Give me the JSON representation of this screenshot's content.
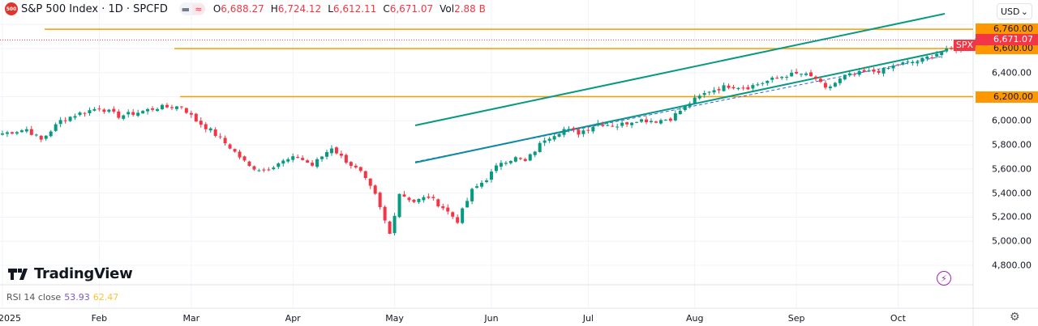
{
  "header": {
    "symbol_logo": "500",
    "title": "S&P 500 Index · 1D · SPCFD",
    "pill_left": "▬",
    "pill_right": "≈",
    "ohlc": {
      "o_label": "O",
      "o": "6,688.27",
      "h_label": "H",
      "h": "6,724.12",
      "l_label": "L",
      "l": "6,612.11",
      "c_label": "C",
      "c": "6,671.07",
      "vol_label": "Vol",
      "vol": "2.88 B"
    }
  },
  "currency": {
    "label": "USD",
    "chevron": "⌄"
  },
  "price_axis": {
    "labels": [
      {
        "p": 6400,
        "t": "6,400.00"
      },
      {
        "p": 6000,
        "t": "6,000.00"
      },
      {
        "p": 5800,
        "t": "5,800.00"
      },
      {
        "p": 5600,
        "t": "5,600.00"
      },
      {
        "p": 5400,
        "t": "5,400.00"
      },
      {
        "p": 5200,
        "t": "5,200.00"
      },
      {
        "p": 5000,
        "t": "5,000.00"
      },
      {
        "p": 4800,
        "t": "4,800.00"
      }
    ],
    "tags": [
      {
        "p": 6760,
        "t": "6,760.00"
      },
      {
        "p": 6600,
        "t": "6,600.00"
      },
      {
        "p": 6200,
        "t": "6,200.00"
      }
    ],
    "last": {
      "p": 6671.07,
      "t": "6,671.07",
      "symbol": "SPX"
    }
  },
  "colors": {
    "up": "#089981",
    "down": "#f23645",
    "level": "#ff9800",
    "channel": "#089981",
    "regression": "#2962ff"
  },
  "levels": [
    6760,
    6600,
    6200
  ],
  "chart_data": {
    "type": "candlestick",
    "closes_keyframes": [
      [
        0,
        5895
      ],
      [
        5,
        5930
      ],
      [
        8,
        5840
      ],
      [
        12,
        6000
      ],
      [
        15,
        6050
      ],
      [
        20,
        6110
      ],
      [
        24,
        6040
      ],
      [
        28,
        6070
      ],
      [
        32,
        6110
      ],
      [
        37,
        6120
      ],
      [
        40,
        6000
      ],
      [
        43,
        5920
      ],
      [
        47,
        5780
      ],
      [
        51,
        5620
      ],
      [
        54,
        5590
      ],
      [
        57,
        5650
      ],
      [
        61,
        5700
      ],
      [
        64,
        5630
      ],
      [
        68,
        5780
      ],
      [
        70,
        5700
      ],
      [
        74,
        5570
      ],
      [
        77,
        5380
      ],
      [
        80,
        5060
      ],
      [
        82,
        5400
      ],
      [
        85,
        5330
      ],
      [
        88,
        5370
      ],
      [
        91,
        5280
      ],
      [
        94,
        5170
      ],
      [
        97,
        5420
      ],
      [
        100,
        5520
      ],
      [
        103,
        5660
      ],
      [
        106,
        5690
      ],
      [
        108,
        5660
      ],
      [
        112,
        5850
      ],
      [
        116,
        5930
      ],
      [
        119,
        5900
      ],
      [
        123,
        5980
      ],
      [
        127,
        5960
      ],
      [
        131,
        6010
      ],
      [
        135,
        6000
      ],
      [
        138,
        6020
      ],
      [
        142,
        6150
      ],
      [
        146,
        6250
      ],
      [
        150,
        6290
      ],
      [
        154,
        6280
      ],
      [
        158,
        6330
      ],
      [
        162,
        6380
      ],
      [
        165,
        6390
      ],
      [
        168,
        6350
      ],
      [
        170,
        6260
      ],
      [
        174,
        6370
      ],
      [
        178,
        6400
      ],
      [
        182,
        6420
      ],
      [
        185,
        6470
      ],
      [
        189,
        6490
      ],
      [
        193,
        6560
      ],
      [
        197,
        6600
      ],
      [
        201,
        6660
      ],
      [
        205,
        6700
      ],
      [
        209,
        6740
      ],
      [
        212,
        6700
      ],
      [
        213,
        6560
      ],
      [
        214,
        6600
      ],
      [
        215,
        6660
      ],
      [
        216,
        6671
      ]
    ]
  },
  "months": [
    {
      "t": "2025",
      "d": 0
    },
    {
      "t": "Feb",
      "d": 20
    },
    {
      "t": "Mar",
      "d": 39
    },
    {
      "t": "Apr",
      "d": 60
    },
    {
      "t": "May",
      "d": 81
    },
    {
      "t": "Jun",
      "d": 101
    },
    {
      "t": "Jul",
      "d": 121
    },
    {
      "t": "Aug",
      "d": 143
    },
    {
      "t": "Sep",
      "d": 164
    },
    {
      "t": "Oct",
      "d": 185
    }
  ],
  "brand": "TradingView",
  "rsi": {
    "label": "RSI 14 close",
    "v1": "53.93",
    "v2": "62.47"
  },
  "icons": {
    "bolt": "⚡",
    "gear": "⚙"
  }
}
